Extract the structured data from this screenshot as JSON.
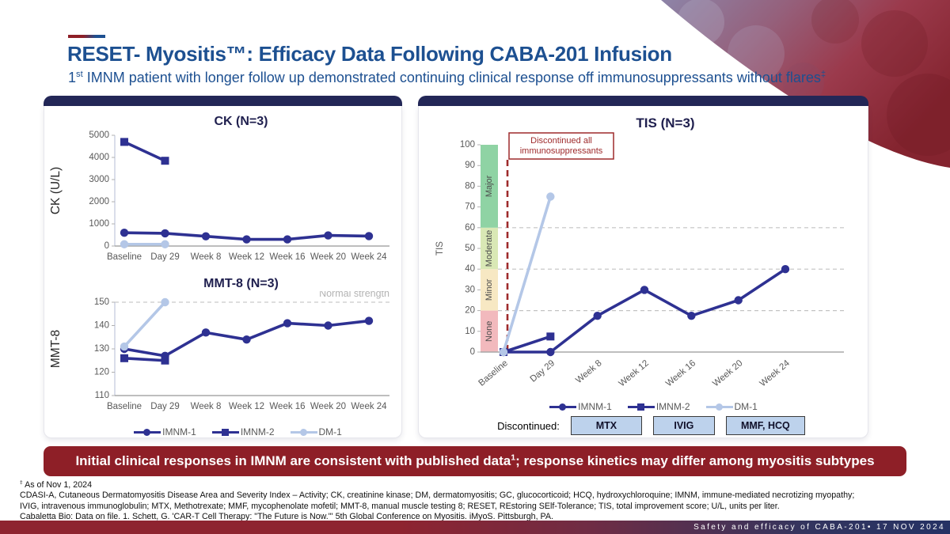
{
  "header": {
    "title": "RESET- Myositis™: Efficacy Data Following CABA-201 Infusion",
    "subtitle": {
      "n": "1",
      "sup": "st",
      "text": " IMNM patient with longer follow up demonstrated continuing clinical response off immunosuppressants without flares",
      "mark": "‡"
    }
  },
  "chart_data": [
    {
      "id": "ck",
      "type": "line",
      "title": "CK (N=3)",
      "ylabel": "CK (U/L)",
      "categories": [
        "Baseline",
        "Day 29",
        "Week 8",
        "Week 12",
        "Week 16",
        "Week 20",
        "Week 24"
      ],
      "ylim": [
        0,
        5000
      ],
      "yticks": [
        0,
        1000,
        2000,
        3000,
        4000,
        5000
      ],
      "grid": false,
      "series": [
        {
          "name": "IMNM-1",
          "color": "#2e3192",
          "marker": "circle",
          "values": [
            600,
            575,
            440,
            300,
            300,
            480,
            450
          ]
        },
        {
          "name": "IMNM-2",
          "color": "#2e3192",
          "marker": "square",
          "values": [
            4700,
            3850,
            null,
            null,
            null,
            null,
            null
          ]
        },
        {
          "name": "DM-1",
          "color": "#b4c7e7",
          "marker": "circle",
          "values": [
            80,
            80,
            null,
            null,
            null,
            null,
            null
          ]
        }
      ]
    },
    {
      "id": "mmt8",
      "type": "line",
      "title": "MMT-8 (N=3)",
      "ylabel": "MMT-8",
      "categories": [
        "Baseline",
        "Day 29",
        "Week 8",
        "Week 12",
        "Week 16",
        "Week 20",
        "Week 24"
      ],
      "ylim": [
        110,
        150
      ],
      "yticks": [
        110,
        120,
        130,
        140,
        150
      ],
      "grid": false,
      "ref": {
        "y": 150,
        "label": "Normal strength"
      },
      "series": [
        {
          "name": "IMNM-1",
          "color": "#2e3192",
          "marker": "circle",
          "values": [
            130,
            127,
            137,
            134,
            141,
            140,
            142
          ]
        },
        {
          "name": "IMNM-2",
          "color": "#2e3192",
          "marker": "square",
          "values": [
            126,
            125,
            null,
            null,
            null,
            null,
            null
          ]
        },
        {
          "name": "DM-1",
          "color": "#b4c7e7",
          "marker": "circle",
          "values": [
            131,
            150,
            null,
            null,
            null,
            null,
            null
          ]
        }
      ]
    },
    {
      "id": "tis",
      "type": "line",
      "title": "TIS (N=3)",
      "ylabel": "TIS",
      "categories": [
        "Baseline",
        "Day 29",
        "Week 8",
        "Week 12",
        "Week 16",
        "Week 20",
        "Week 24"
      ],
      "ylim": [
        0,
        100
      ],
      "yticks": [
        0,
        10,
        20,
        30,
        40,
        50,
        60,
        70,
        80,
        90,
        100
      ],
      "gridlines": [
        20,
        40,
        60
      ],
      "bands": [
        {
          "from": 0,
          "to": 20,
          "label": "None",
          "color": "#f2b9bd"
        },
        {
          "from": 20,
          "to": 40,
          "label": "Minor",
          "color": "#f7e8c3"
        },
        {
          "from": 40,
          "to": 60,
          "label": "Moderate",
          "color": "#d9e8b5"
        },
        {
          "from": 60,
          "to": 100,
          "label": "Major",
          "color": "#8fd3a4"
        }
      ],
      "vline": {
        "color": "#9e2a2b"
      },
      "annotation": {
        "lines": [
          "Discontinued all",
          "immunosuppressants"
        ],
        "color": "#9e2a2b"
      },
      "series": [
        {
          "name": "IMNM-1",
          "color": "#2e3192",
          "marker": "circle",
          "values": [
            0,
            0,
            17.5,
            30,
            17.5,
            25,
            40
          ]
        },
        {
          "name": "IMNM-2",
          "color": "#2e3192",
          "marker": "square",
          "values": [
            0,
            7.5,
            null,
            null,
            null,
            null,
            null
          ]
        },
        {
          "name": "DM-1",
          "color": "#b4c7e7",
          "marker": "circle",
          "values": [
            0,
            75,
            null,
            null,
            null,
            null,
            null
          ]
        }
      ]
    }
  ],
  "legend": {
    "items": [
      {
        "name": "IMNM-1",
        "color": "#2e3192",
        "marker": "circle"
      },
      {
        "name": "IMNM-2",
        "color": "#2e3192",
        "marker": "square"
      },
      {
        "name": "DM-1",
        "color": "#b4c7e7",
        "marker": "circle"
      }
    ]
  },
  "discontinued": {
    "label": "Discontinued:",
    "boxes": [
      "MTX",
      "IVIG",
      "MMF, HCQ"
    ]
  },
  "banner": {
    "part1": "Initial clinical responses in IMNM are consistent with published data",
    "sup": "1",
    "part2": "; response kinetics may differ among myositis subtypes"
  },
  "footnotes": {
    "mark": "‡",
    "line1": " As of Nov 1, 2024",
    "line2": "CDASI-A, Cutaneous Dermatomyositis Disease Area and Severity Index – Activity; CK, creatinine kinase; DM, dermatomyositis; GC, glucocorticoid; HCQ, hydroxychloroquine; IMNM, immune-mediated necrotizing myopathy;",
    "line3": "IVIG, intravenous immunoglobulin; MTX, Methotrexate; MMF, mycophenolate mofetil; MMT-8, manual muscle testing 8; RESET, REstoring SElf-Tolerance; TIS, total improvement score; U/L, units per liter.",
    "line4": "Cabaletta Bio: Data on file. 1. Schett, G. 'CAR-T Cell Therapy: \"The Future is Now.\"' 5th Global Conference on Myositis. iMyoS. Pittsburgh, PA."
  },
  "footer": {
    "text": "Safety and efficacy of CABA-201• 17 NOV 2024"
  },
  "colors": {
    "title_blue": "#1d5091",
    "panel_navy": "#232757",
    "banner_red": "#8e1f27",
    "line_navy": "#2e3192",
    "line_lightblue": "#b4c7e7",
    "annotation_red": "#9e2a2b"
  }
}
